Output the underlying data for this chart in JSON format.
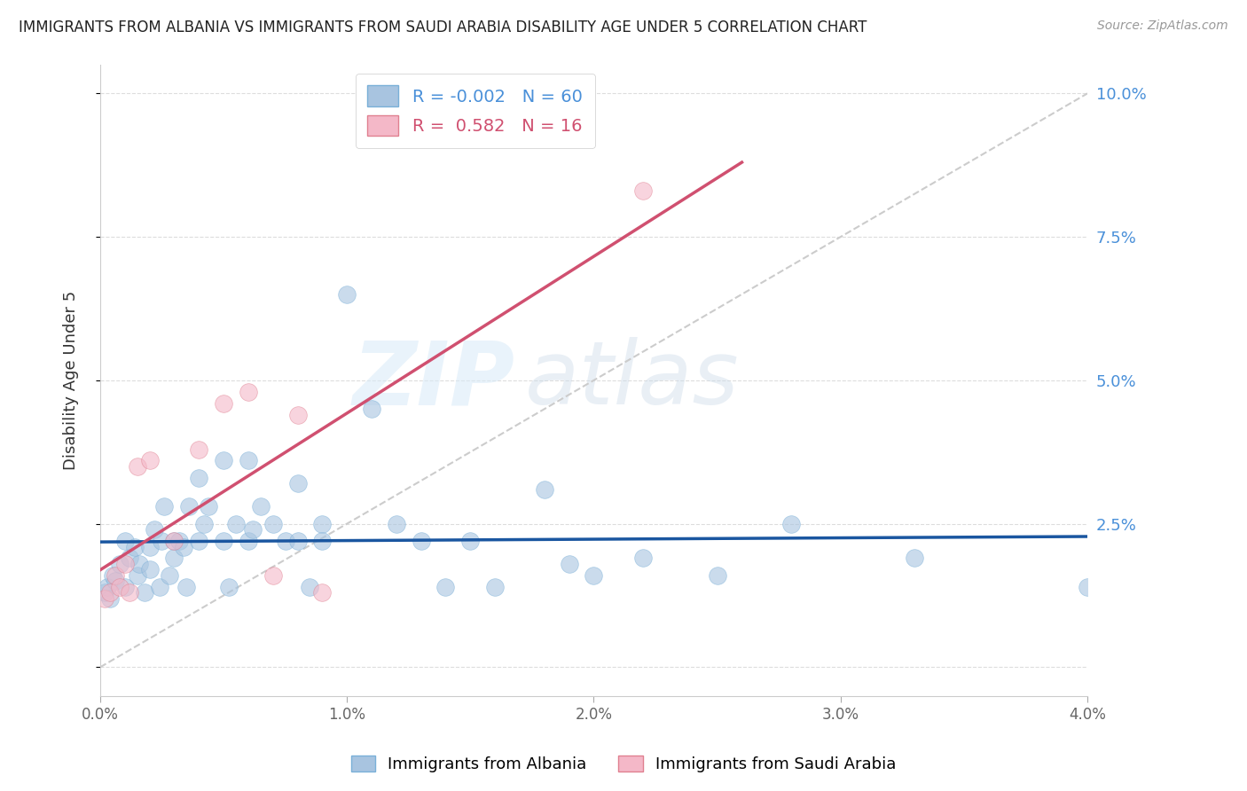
{
  "title": "IMMIGRANTS FROM ALBANIA VS IMMIGRANTS FROM SAUDI ARABIA DISABILITY AGE UNDER 5 CORRELATION CHART",
  "source": "Source: ZipAtlas.com",
  "ylabel": "Disability Age Under 5",
  "legend_albania": "Immigrants from Albania",
  "legend_saudi": "Immigrants from Saudi Arabia",
  "R_albania": -0.002,
  "N_albania": 60,
  "R_saudi": 0.582,
  "N_saudi": 16,
  "color_albania": "#a8c4e0",
  "color_saudi": "#f4b8c8",
  "color_trend_albania": "#1a56a0",
  "color_trend_saudi": "#d05070",
  "color_ref_line": "#cccccc",
  "xlim": [
    0.0,
    0.04
  ],
  "ylim": [
    -0.005,
    0.105
  ],
  "yticks": [
    0.0,
    0.025,
    0.05,
    0.075,
    0.1
  ],
  "ytick_labels": [
    "",
    "2.5%",
    "5.0%",
    "7.5%",
    "10.0%"
  ],
  "xticks": [
    0.0,
    0.01,
    0.02,
    0.03,
    0.04
  ],
  "xtick_labels": [
    "0.0%",
    "1.0%",
    "2.0%",
    "3.0%",
    "4.0%"
  ],
  "albania_x": [
    0.0002,
    0.0003,
    0.0004,
    0.0005,
    0.0006,
    0.0008,
    0.001,
    0.001,
    0.0012,
    0.0014,
    0.0015,
    0.0016,
    0.0018,
    0.002,
    0.002,
    0.0022,
    0.0024,
    0.0025,
    0.0026,
    0.0028,
    0.003,
    0.003,
    0.0032,
    0.0034,
    0.0035,
    0.0036,
    0.004,
    0.004,
    0.0042,
    0.0044,
    0.005,
    0.005,
    0.0052,
    0.0055,
    0.006,
    0.006,
    0.0062,
    0.0065,
    0.007,
    0.0075,
    0.008,
    0.008,
    0.0085,
    0.009,
    0.009,
    0.01,
    0.011,
    0.012,
    0.013,
    0.014,
    0.015,
    0.016,
    0.018,
    0.019,
    0.02,
    0.022,
    0.025,
    0.028,
    0.033,
    0.04
  ],
  "albania_y": [
    0.013,
    0.014,
    0.012,
    0.016,
    0.015,
    0.018,
    0.022,
    0.014,
    0.019,
    0.021,
    0.016,
    0.018,
    0.013,
    0.017,
    0.021,
    0.024,
    0.014,
    0.022,
    0.028,
    0.016,
    0.022,
    0.019,
    0.022,
    0.021,
    0.014,
    0.028,
    0.033,
    0.022,
    0.025,
    0.028,
    0.036,
    0.022,
    0.014,
    0.025,
    0.036,
    0.022,
    0.024,
    0.028,
    0.025,
    0.022,
    0.032,
    0.022,
    0.014,
    0.025,
    0.022,
    0.065,
    0.045,
    0.025,
    0.022,
    0.014,
    0.022,
    0.014,
    0.031,
    0.018,
    0.016,
    0.019,
    0.016,
    0.025,
    0.019,
    0.014
  ],
  "saudi_x": [
    0.0002,
    0.0004,
    0.0006,
    0.0008,
    0.001,
    0.0012,
    0.0015,
    0.002,
    0.003,
    0.004,
    0.005,
    0.006,
    0.007,
    0.008,
    0.009,
    0.022
  ],
  "saudi_y": [
    0.012,
    0.013,
    0.016,
    0.014,
    0.018,
    0.013,
    0.035,
    0.036,
    0.022,
    0.038,
    0.046,
    0.048,
    0.016,
    0.044,
    0.013,
    0.083
  ],
  "watermark_zip": "ZIP",
  "watermark_atlas": "atlas",
  "background_color": "#ffffff",
  "grid_color": "#dddddd",
  "ref_line_x": [
    0.0,
    0.04
  ],
  "ref_line_y": [
    0.0,
    0.1
  ]
}
